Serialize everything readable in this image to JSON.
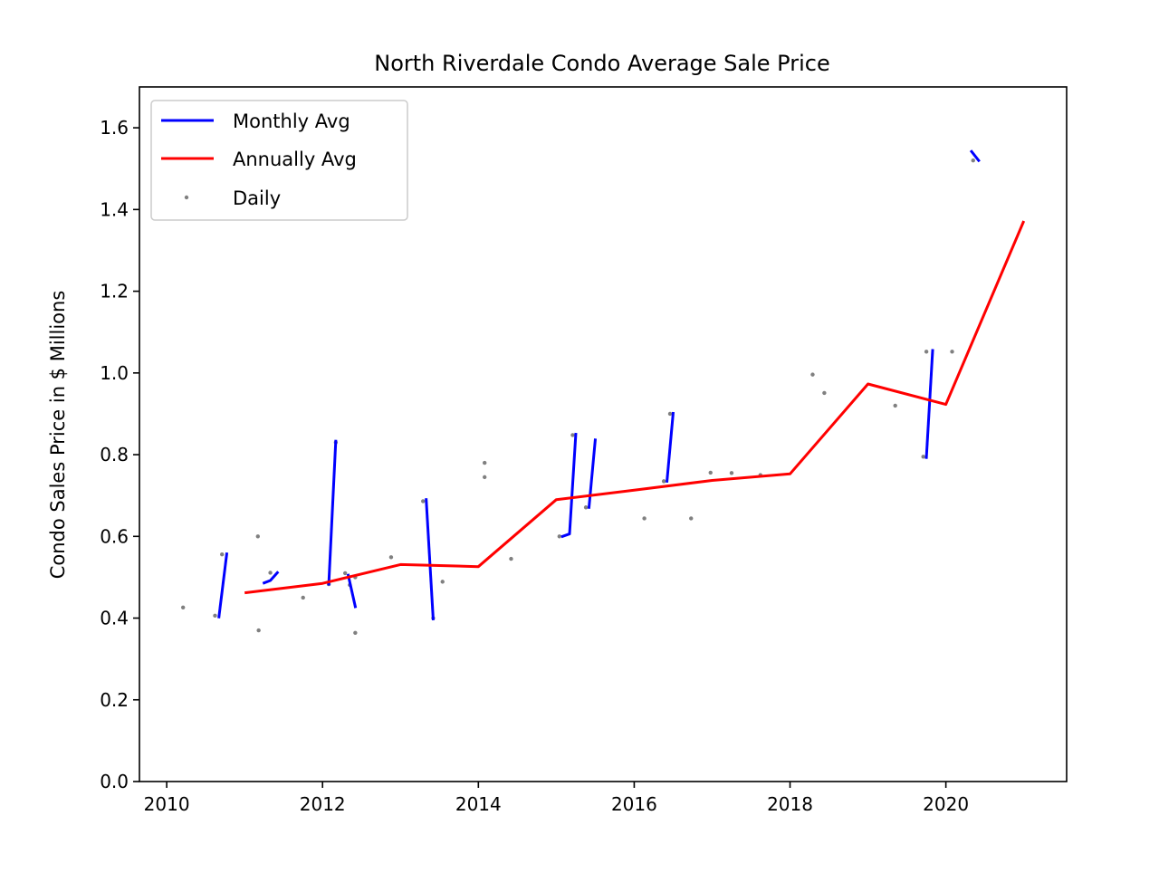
{
  "chart_data": {
    "type": "line",
    "title": "North Riverdale Condo Average Sale Price",
    "xlabel": "",
    "ylabel": "Condo Sales Price in $ Millions",
    "xlim": [
      2009.65,
      2021.55
    ],
    "ylim": [
      0.0,
      1.7
    ],
    "x_ticks": [
      2010,
      2012,
      2014,
      2016,
      2018,
      2020
    ],
    "x_tick_labels": [
      "2010",
      "2012",
      "2014",
      "2016",
      "2018",
      "2020"
    ],
    "y_ticks": [
      0.0,
      0.2,
      0.4,
      0.6,
      0.8,
      1.0,
      1.2,
      1.4,
      1.6
    ],
    "y_tick_labels": [
      "0.0",
      "0.2",
      "0.4",
      "0.6",
      "0.8",
      "1.0",
      "1.2",
      "1.4",
      "1.6"
    ],
    "grid": false,
    "legend_position": "top-left",
    "legend": [
      {
        "label": "Monthly Avg",
        "kind": "line",
        "color": "#0000ff"
      },
      {
        "label": "Annually Avg",
        "kind": "line",
        "color": "#ff0000"
      },
      {
        "label": "Daily",
        "kind": "point",
        "color": "#808080"
      }
    ],
    "series": [
      {
        "name": "Monthly Avg",
        "color": "#0000ff",
        "segments": [
          {
            "x": [
              2010.67,
              2010.77
            ],
            "y": [
              0.403,
              0.557
            ]
          },
          {
            "x": [
              2011.25,
              2011.33,
              2011.42
            ],
            "y": [
              0.486,
              0.492,
              0.511
            ]
          },
          {
            "x": [
              2012.08,
              2012.17
            ],
            "y": [
              0.483,
              0.833
            ]
          },
          {
            "x": [
              2012.33,
              2012.42
            ],
            "y": [
              0.505,
              0.428
            ]
          },
          {
            "x": [
              2013.33,
              2013.42
            ],
            "y": [
              0.69,
              0.398
            ]
          },
          {
            "x": [
              2015.08,
              2015.17,
              2015.25
            ],
            "y": [
              0.6,
              0.606,
              0.85
            ]
          },
          {
            "x": [
              2015.42,
              2015.5
            ],
            "y": [
              0.671,
              0.836
            ]
          },
          {
            "x": [
              2016.42,
              2016.5
            ],
            "y": [
              0.735,
              0.901
            ]
          },
          {
            "x": [
              2019.75,
              2019.83
            ],
            "y": [
              0.793,
              1.055
            ]
          },
          {
            "x": [
              2020.33,
              2020.42
            ],
            "y": [
              1.542,
              1.52
            ]
          }
        ]
      },
      {
        "name": "Annually Avg",
        "color": "#ff0000",
        "x": [
          2011,
          2012,
          2013,
          2014,
          2015,
          2016,
          2017,
          2018,
          2019,
          2020,
          2021
        ],
        "y": [
          0.462,
          0.485,
          0.531,
          0.526,
          0.69,
          0.713,
          0.737,
          0.753,
          0.973,
          0.923,
          1.372
        ]
      },
      {
        "name": "Daily",
        "color": "#808080",
        "points": [
          {
            "x": 2010.21,
            "y": 0.426
          },
          {
            "x": 2010.62,
            "y": 0.406
          },
          {
            "x": 2010.71,
            "y": 0.556
          },
          {
            "x": 2011.17,
            "y": 0.6
          },
          {
            "x": 2011.18,
            "y": 0.37
          },
          {
            "x": 2011.33,
            "y": 0.511
          },
          {
            "x": 2011.75,
            "y": 0.45
          },
          {
            "x": 2012.08,
            "y": 0.483
          },
          {
            "x": 2012.17,
            "y": 0.83
          },
          {
            "x": 2012.29,
            "y": 0.51
          },
          {
            "x": 2012.35,
            "y": 0.481
          },
          {
            "x": 2012.42,
            "y": 0.5
          },
          {
            "x": 2012.42,
            "y": 0.364
          },
          {
            "x": 2012.88,
            "y": 0.549
          },
          {
            "x": 2013.29,
            "y": 0.686
          },
          {
            "x": 2013.42,
            "y": 0.4
          },
          {
            "x": 2013.54,
            "y": 0.489
          },
          {
            "x": 2014.08,
            "y": 0.78
          },
          {
            "x": 2014.08,
            "y": 0.745
          },
          {
            "x": 2014.42,
            "y": 0.545
          },
          {
            "x": 2015.04,
            "y": 0.6
          },
          {
            "x": 2015.21,
            "y": 0.848
          },
          {
            "x": 2015.38,
            "y": 0.671
          },
          {
            "x": 2016.13,
            "y": 0.644
          },
          {
            "x": 2016.38,
            "y": 0.735
          },
          {
            "x": 2016.46,
            "y": 0.9
          },
          {
            "x": 2016.73,
            "y": 0.644
          },
          {
            "x": 2016.98,
            "y": 0.756
          },
          {
            "x": 2017.25,
            "y": 0.755
          },
          {
            "x": 2017.62,
            "y": 0.75
          },
          {
            "x": 2018.29,
            "y": 0.996
          },
          {
            "x": 2018.44,
            "y": 0.951
          },
          {
            "x": 2019.35,
            "y": 0.92
          },
          {
            "x": 2019.71,
            "y": 0.795
          },
          {
            "x": 2019.75,
            "y": 1.052
          },
          {
            "x": 2020.08,
            "y": 1.052
          },
          {
            "x": 2020.35,
            "y": 1.52
          }
        ]
      }
    ]
  }
}
